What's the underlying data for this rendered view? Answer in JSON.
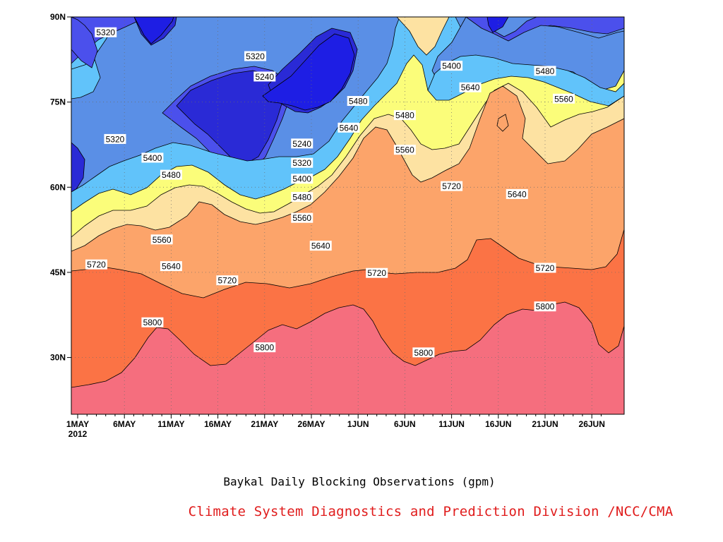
{
  "chart_data": {
    "type": "contour",
    "xlabel": "Baykal Daily Blocking Observations (gpm)",
    "credit": "Climate System Diagnostics and Prediction Division /NCC/CMA",
    "units": "gpm",
    "x_axis": {
      "ticks": [
        "1MAY",
        "6MAY",
        "11MAY",
        "16MAY",
        "21MAY",
        "26MAY",
        "1JUN",
        "6JUN",
        "11JUN",
        "16JUN",
        "21JUN",
        "26JUN"
      ],
      "year_label": "2012",
      "range": [
        "2012-04-30",
        "2012-06-26"
      ]
    },
    "y_axis": {
      "ticks": [
        "30N",
        "45N",
        "60N",
        "75N",
        "90N"
      ],
      "range": [
        20,
        90
      ]
    },
    "grid": true,
    "levels": [
      5240,
      5320,
      5400,
      5480,
      5560,
      5640,
      5720,
      5800
    ],
    "level_colors": {
      "below_5240": "#1e1ee4",
      "5240": "#2a2ad6",
      "5320": "#4b50ec",
      "5400": "#5a8fe6",
      "5480": "#61c3fa",
      "5560": "#fbfd7a",
      "5640": "#fde2a2",
      "5720": "#fca46a",
      "5800": "#fb7345",
      "above_5800": "#f56e7e"
    },
    "contour_labels": [
      {
        "date": "2012-05-04",
        "lat": 87.3,
        "value": "5320"
      },
      {
        "date": "2012-05-20",
        "lat": 83.1,
        "value": "5320"
      },
      {
        "date": "2012-05-21",
        "lat": 79.5,
        "value": "5240"
      },
      {
        "date": "2012-05-25",
        "lat": 67.7,
        "value": "5240"
      },
      {
        "date": "2012-05-05",
        "lat": 68.5,
        "value": "5320"
      },
      {
        "date": "2012-05-09",
        "lat": 65.2,
        "value": "5400"
      },
      {
        "date": "2012-05-11",
        "lat": 62.2,
        "value": "5480"
      },
      {
        "date": "2012-05-10",
        "lat": 50.8,
        "value": "5560"
      },
      {
        "date": "2012-05-03",
        "lat": 46.4,
        "value": "5720"
      },
      {
        "date": "2012-05-11",
        "lat": 46.1,
        "value": "5640"
      },
      {
        "date": "2012-05-17",
        "lat": 43.6,
        "value": "5720"
      },
      {
        "date": "2012-05-25",
        "lat": 64.3,
        "value": "5320"
      },
      {
        "date": "2012-05-25",
        "lat": 61.5,
        "value": "5400"
      },
      {
        "date": "2012-05-25",
        "lat": 58.3,
        "value": "5480"
      },
      {
        "date": "2012-05-25",
        "lat": 54.6,
        "value": "5560"
      },
      {
        "date": "2012-05-27",
        "lat": 49.7,
        "value": "5640"
      },
      {
        "date": "2012-05-31",
        "lat": 75.2,
        "value": "5480"
      },
      {
        "date": "2012-05-30",
        "lat": 70.5,
        "value": "5640"
      },
      {
        "date": "2012-06-05",
        "lat": 72.7,
        "value": "5480"
      },
      {
        "date": "2012-06-05",
        "lat": 66.6,
        "value": "5560"
      },
      {
        "date": "2012-06-10",
        "lat": 81.4,
        "value": "5400"
      },
      {
        "date": "2012-06-12",
        "lat": 77.6,
        "value": "5640"
      },
      {
        "date": "2012-06-10",
        "lat": 60.2,
        "value": "5720"
      },
      {
        "date": "2012-06-17",
        "lat": 58.8,
        "value": "5640"
      },
      {
        "date": "2012-06-20",
        "lat": 80.5,
        "value": "5480"
      },
      {
        "date": "2012-06-22",
        "lat": 75.6,
        "value": "5560"
      },
      {
        "date": "2012-06-20",
        "lat": 45.8,
        "value": "5720"
      },
      {
        "date": "2012-06-20",
        "lat": 39.0,
        "value": "5800"
      },
      {
        "date": "2012-06-02",
        "lat": 44.9,
        "value": "5720"
      },
      {
        "date": "2012-06-07",
        "lat": 30.9,
        "value": "5800"
      },
      {
        "date": "2012-05-21",
        "lat": 31.8,
        "value": "5800"
      },
      {
        "date": "2012-05-09",
        "lat": 36.2,
        "value": "5800"
      }
    ]
  }
}
